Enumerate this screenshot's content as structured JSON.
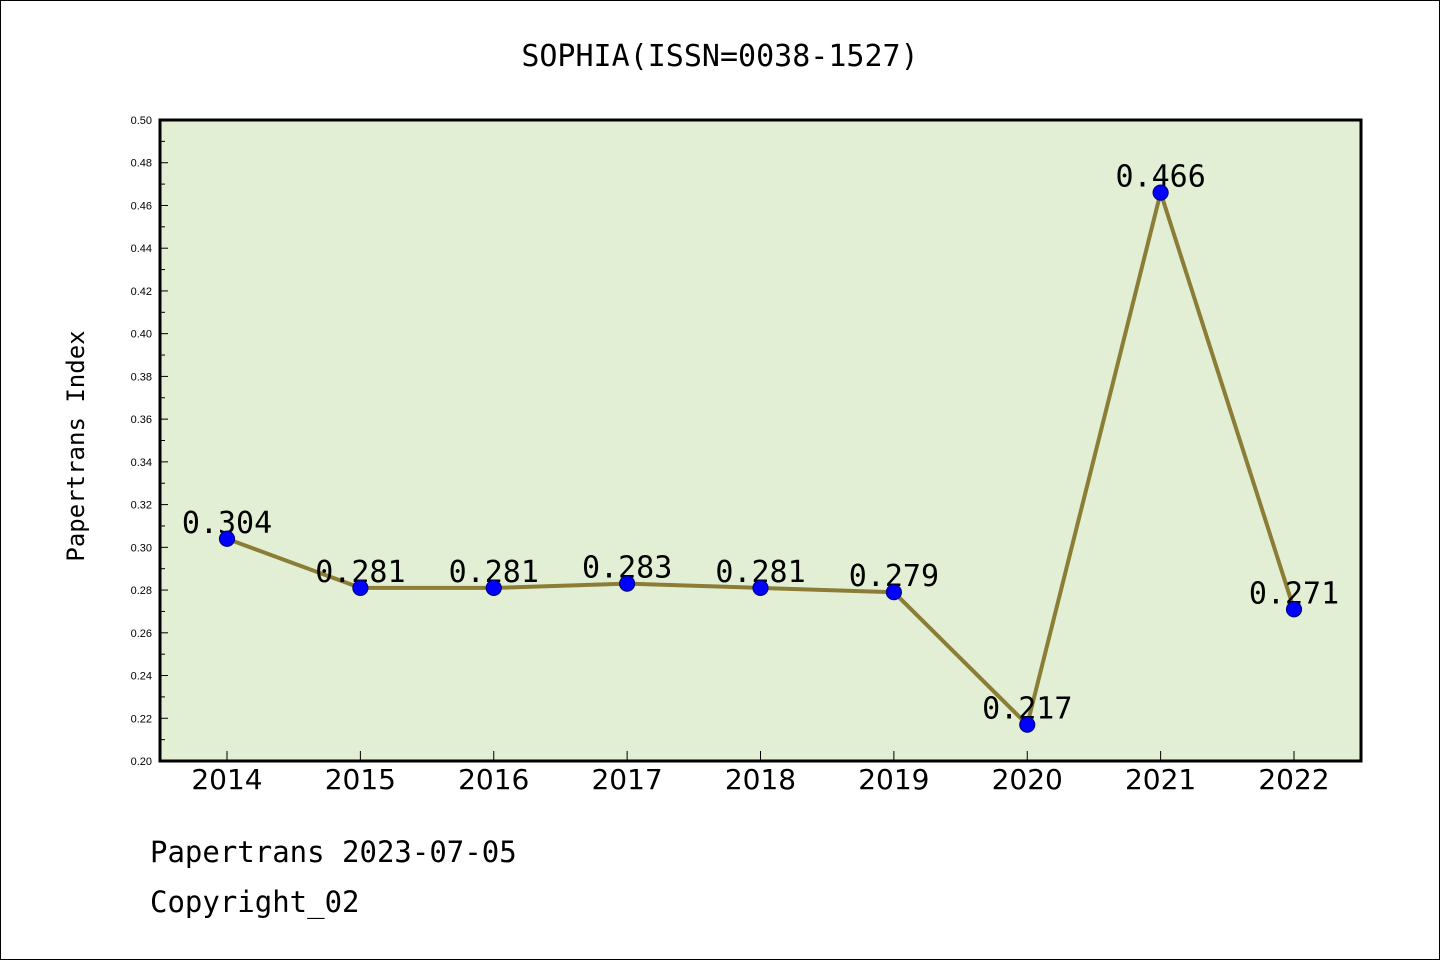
{
  "chart_data": {
    "type": "line",
    "title": "SOPHIA(ISSN=0038-1527)",
    "xlabel": "",
    "ylabel": "Papertrans Index",
    "categories": [
      "2014",
      "2015",
      "2016",
      "2017",
      "2018",
      "2019",
      "2020",
      "2021",
      "2022"
    ],
    "values": [
      0.304,
      0.281,
      0.281,
      0.283,
      0.281,
      0.279,
      0.217,
      0.466,
      0.271
    ],
    "data_labels": [
      "0.304",
      "0.281",
      "0.281",
      "0.283",
      "0.281",
      "0.279",
      "0.217",
      "0.466",
      "0.271"
    ],
    "ylim": [
      0.2,
      0.5
    ],
    "yticks": [
      "0.20",
      "0.22",
      "0.24",
      "0.26",
      "0.28",
      "0.30",
      "0.32",
      "0.34",
      "0.36",
      "0.38",
      "0.40",
      "0.42",
      "0.44",
      "0.46",
      "0.48",
      "0.50"
    ],
    "grid": false,
    "legend": "none",
    "colors": {
      "plot_background": "#e2efd5",
      "line": "#8b7d36",
      "marker": "#0000ff",
      "marker_edge": "#000080"
    }
  },
  "footer": {
    "line1": "Papertrans 2023-07-05",
    "line2": "Copyright_02"
  }
}
